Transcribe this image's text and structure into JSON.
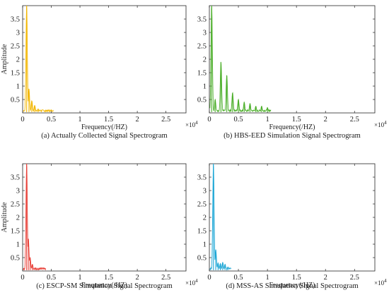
{
  "chart_data": [
    {
      "type": "line",
      "panel": "a",
      "caption": "(a) Actually Collected Signal Spectrogram",
      "xlabel": "Frequency(/HZ)",
      "ylabel": "Amplitude",
      "xlim": [
        0,
        28500
      ],
      "ylim": [
        0,
        4.0
      ],
      "xticks": [
        0,
        5000,
        10000,
        15000,
        20000,
        25000
      ],
      "xtick_labels": [
        "0",
        "0.5",
        "1",
        "1.5",
        "2",
        "2.5"
      ],
      "yticks": [
        0.5,
        1,
        1.5,
        2,
        2.5,
        3,
        3.5
      ],
      "ytick_labels": [
        "0.5",
        "1",
        "1.5",
        "2",
        "2.5",
        "3",
        "3.5"
      ],
      "x_multiplier": "×10",
      "x_multiplier_exp": "4",
      "color": "#f2b705",
      "series": [
        {
          "x": [
            700,
            1100,
            1600,
            2100,
            2700,
            3300,
            4000,
            4800
          ],
          "y": [
            4.0,
            0.9,
            0.45,
            0.28,
            0.15,
            0.1,
            0.06,
            0.04
          ]
        }
      ]
    },
    {
      "type": "line",
      "panel": "b",
      "caption": "(b) HBS-EED Simulation  Signal Spectrogram",
      "xlabel": "Frequency(/HZ)",
      "ylabel": "",
      "xlim": [
        0,
        28500
      ],
      "ylim": [
        0,
        4.0
      ],
      "xticks": [
        0,
        5000,
        10000,
        15000,
        20000,
        25000
      ],
      "xtick_labels": [
        "0",
        "0.5",
        "1",
        "1.5",
        "2",
        "2.5"
      ],
      "yticks": [
        0.5,
        1,
        1.5,
        2,
        2.5,
        3,
        3.5
      ],
      "ytick_labels": [
        "0.5",
        "1",
        "1.5",
        "2",
        "2.5",
        "3",
        "3.5"
      ],
      "x_multiplier": "×10",
      "x_multiplier_exp": "4",
      "color": "#4caf2a",
      "series": [
        {
          "x": [
            400,
            1000,
            2000,
            3000,
            4000,
            5000,
            6000,
            7000,
            8000,
            9000,
            10000
          ],
          "y": [
            4.0,
            0.5,
            1.9,
            1.4,
            0.75,
            0.5,
            0.4,
            0.35,
            0.25,
            0.25,
            0.2
          ]
        }
      ]
    },
    {
      "type": "line",
      "panel": "c",
      "caption": "(c) ESCP-SM Simulation  Signal Spectrogram",
      "xlabel": "Frequency(/HZ)",
      "ylabel": "Amplitude",
      "xlim": [
        0,
        28500
      ],
      "ylim": [
        0,
        4.0
      ],
      "xticks": [
        0,
        5000,
        10000,
        15000,
        20000,
        25000
      ],
      "xtick_labels": [
        "0",
        "0.5",
        "1",
        "1.5",
        "2",
        "2.5"
      ],
      "yticks": [
        0.5,
        1,
        1.5,
        2,
        2.5,
        3,
        3.5
      ],
      "ytick_labels": [
        "0.5",
        "1",
        "1.5",
        "2",
        "2.5",
        "3",
        "3.5"
      ],
      "x_multiplier": "×10",
      "x_multiplier_exp": "4",
      "color": "#e8423a",
      "series": [
        {
          "x": [
            700,
            1000,
            1300,
            1700,
            2200,
            2800,
            3500
          ],
          "y": [
            4.0,
            1.2,
            0.5,
            0.25,
            0.12,
            0.07,
            0.04
          ]
        }
      ]
    },
    {
      "type": "line",
      "panel": "d",
      "caption": "(d) MSS-AS Simulation  Signal Spectrogram",
      "xlabel": "Frequency(/HZ)",
      "ylabel": "",
      "xlim": [
        0,
        28500
      ],
      "ylim": [
        0,
        4.0
      ],
      "xticks": [
        0,
        5000,
        10000,
        15000,
        20000,
        25000
      ],
      "xtick_labels": [
        "0",
        "0.5",
        "1",
        "1.5",
        "2",
        "2.5"
      ],
      "yticks": [
        0.5,
        1,
        1.5,
        2,
        2.5,
        3,
        3.5
      ],
      "ytick_labels": [
        "0.5",
        "1",
        "1.5",
        "2",
        "2.5",
        "3",
        "3.5"
      ],
      "x_multiplier": "×10",
      "x_multiplier_exp": "4",
      "color": "#21a8d6",
      "series": [
        {
          "x": [
            700,
            1100,
            1500,
            1900,
            2300,
            2700,
            3200
          ],
          "y": [
            4.0,
            0.8,
            0.3,
            0.28,
            0.32,
            0.25,
            0.15
          ]
        }
      ]
    }
  ]
}
